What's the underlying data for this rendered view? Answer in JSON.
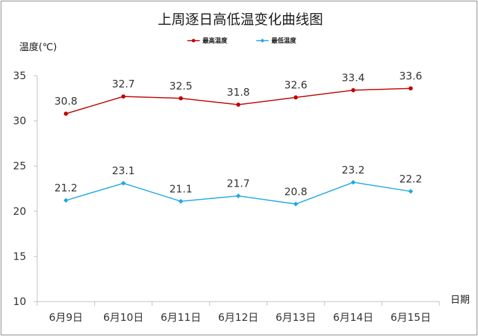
{
  "chart_data": {
    "type": "line",
    "title": "上周逐日高低温变化曲线图",
    "ylabel": "温度(℃)",
    "xlabel": "日期",
    "categories": [
      "6月9日",
      "6月10日",
      "6月11日",
      "6月12日",
      "6月13日",
      "6月14日",
      "6月15日"
    ],
    "ylim": [
      10,
      35
    ],
    "yticks": [
      10,
      15,
      20,
      25,
      30,
      35
    ],
    "grid": false,
    "legend_position": "top",
    "series": [
      {
        "name": "最高温度",
        "color": "#c00000",
        "marker": "circle",
        "values": [
          30.8,
          32.7,
          32.5,
          31.8,
          32.6,
          33.4,
          33.6
        ]
      },
      {
        "name": "最低温度",
        "color": "#1fa9e1",
        "marker": "diamond",
        "values": [
          21.2,
          23.1,
          21.1,
          21.7,
          20.8,
          23.2,
          22.2
        ]
      }
    ]
  }
}
